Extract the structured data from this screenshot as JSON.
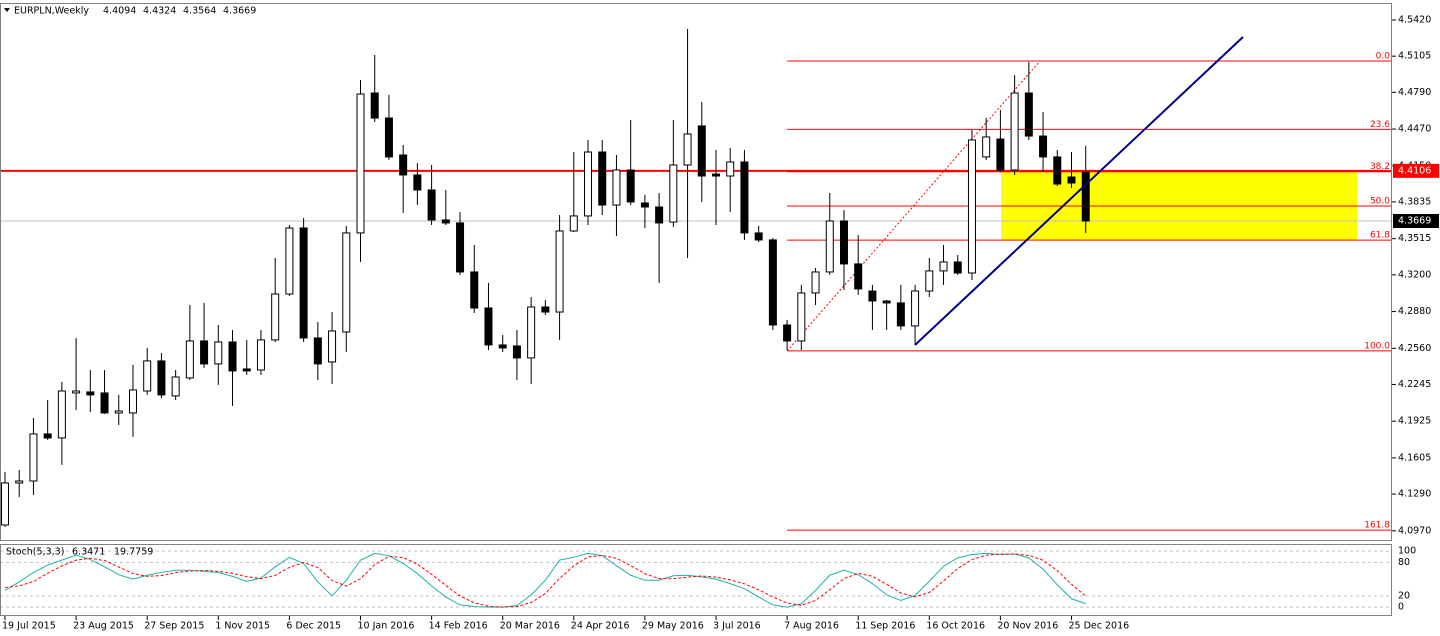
{
  "chart_data": [
    {
      "type": "candlestick",
      "title": "EURPLN,Weekly",
      "categories": [
        "19 Jul 2015",
        null,
        null,
        null,
        null,
        "23 Aug 2015",
        null,
        null,
        null,
        null,
        "27 Sep 2015",
        null,
        null,
        null,
        null,
        "1 Nov 2015",
        null,
        null,
        null,
        null,
        "6 Dec 2015",
        null,
        null,
        null,
        null,
        "10 Jan 2016",
        null,
        null,
        null,
        null,
        "14 Feb 2016",
        null,
        null,
        null,
        null,
        "20 Mar 2016",
        null,
        null,
        null,
        null,
        "24 Apr 2016",
        null,
        null,
        null,
        null,
        "29 May 2016",
        null,
        null,
        null,
        null,
        "3 Jul 2016",
        null,
        null,
        null,
        null,
        "7 Aug 2016",
        null,
        null,
        null,
        null,
        "11 Sep 2016",
        null,
        null,
        null,
        null,
        "16 Oct 2016",
        null,
        null,
        null,
        null,
        "20 Nov 2016",
        null,
        null,
        null,
        null,
        "25 Dec 2016",
        null
      ],
      "open": [
        4.1021,
        4.1387,
        4.1404,
        4.1814,
        4.1779,
        4.2171,
        4.218,
        4.2171,
        4.1997,
        4.1997,
        4.2188,
        4.245,
        4.2145,
        4.2302,
        4.2624,
        4.2424,
        4.2615,
        4.238,
        4.2371,
        4.2633,
        4.3033,
        4.3608,
        4.265,
        4.2441,
        4.2702,
        4.3565,
        4.4784,
        4.4566,
        4.4244,
        4.407,
        4.3939,
        4.3678,
        4.3652,
        4.3225,
        4.2911,
        4.2589,
        4.258,
        4.2476,
        4.292,
        4.2876,
        4.3582,
        4.3713,
        4.427,
        4.3808,
        4.4113,
        4.3826,
        4.3791,
        4.366,
        4.4157,
        4.4497,
        4.4078,
        4.4061,
        4.4183,
        4.3565,
        4.3504,
        4.2763,
        4.2624,
        4.3042,
        4.3225,
        4.3669,
        4.3295,
        4.3059,
        4.2972,
        4.2955,
        4.2755,
        4.3059,
        4.3234,
        4.3312,
        4.3216,
        4.4227,
        4.4383,
        4.4113,
        4.4784,
        4.4409,
        4.4227,
        4.4052,
        4.4094
      ],
      "high": [
        4.1483,
        4.15,
        4.1953,
        4.211,
        4.2267,
        4.265,
        4.2371,
        4.2371,
        4.2154,
        4.2415,
        4.2563,
        4.2519,
        4.2371,
        4.2937,
        4.2955,
        4.2763,
        4.272,
        4.2633,
        4.272,
        4.3347,
        4.3634,
        4.3695,
        4.2789,
        4.2876,
        4.3626,
        4.4897,
        4.5115,
        4.4767,
        4.4331,
        4.4174,
        4.4157,
        4.3939,
        4.3747,
        4.346,
        4.3129,
        4.2676,
        4.272,
        4.3007,
        4.2981,
        4.3721,
        4.427,
        4.4375,
        4.4375,
        4.4244,
        4.4549,
        4.3896,
        4.3913,
        4.4549,
        4.5341,
        4.4706,
        4.4287,
        4.4305,
        4.4287,
        4.3626,
        4.3521,
        4.2807,
        4.3112,
        4.326,
        4.3913,
        4.3765,
        4.3547,
        4.3112,
        4.2981,
        4.3112,
        4.3112,
        4.3347,
        4.346,
        4.3373,
        4.4462,
        4.4566,
        4.4636,
        4.4941,
        4.5054,
        4.4618,
        4.4287,
        4.427,
        4.4324
      ],
      "low": [
        4.1004,
        4.1265,
        4.1283,
        4.1762,
        4.1544,
        4.2023,
        4.2005,
        4.1988,
        4.1892,
        4.1788,
        4.2154,
        4.2127,
        4.211,
        4.2284,
        4.2389,
        4.2241,
        4.2058,
        4.2328,
        4.2328,
        4.2615,
        4.3016,
        4.2615,
        4.2284,
        4.2249,
        4.2528,
        4.3312,
        4.4531,
        4.42,
        4.3739,
        4.3808,
        4.3634,
        4.3634,
        4.3199,
        4.2868,
        4.2545,
        4.2528,
        4.2284,
        4.2249,
        4.285,
        4.2633,
        4.3573,
        4.3634,
        4.3721,
        4.3538,
        4.3808,
        4.3608,
        4.3129,
        4.3617,
        4.3347,
        4.3835,
        4.3634,
        4.3747,
        4.3504,
        4.3486,
        4.272,
        4.2545,
        4.2545,
        4.2937,
        4.3199,
        4.3068,
        4.3025,
        4.272,
        4.272,
        4.272,
        4.2589,
        4.3007,
        4.3112,
        4.3199,
        4.3155,
        4.42,
        4.4096,
        4.407,
        4.4375,
        4.4096,
        4.3974,
        4.3957,
        4.3564
      ],
      "close": [
        4.1387,
        4.1404,
        4.1814,
        4.1779,
        4.2188,
        4.2188,
        4.2154,
        4.1997,
        4.2014,
        4.2197,
        4.245,
        4.2154,
        4.231,
        4.2624,
        4.2424,
        4.2615,
        4.2363,
        4.2363,
        4.2633,
        4.3033,
        4.3608,
        4.265,
        4.2424,
        4.2711,
        4.3565,
        4.4775,
        4.4566,
        4.4227,
        4.407,
        4.3939,
        4.3678,
        4.3652,
        4.3225,
        4.2911,
        4.2589,
        4.2563,
        4.2476,
        4.292,
        4.2876,
        4.3582,
        4.3713,
        4.427,
        4.3808,
        4.4113,
        4.3835,
        4.3791,
        4.3652,
        4.4157,
        4.4427,
        4.4061,
        4.4061,
        4.4183,
        4.3565,
        4.3504,
        4.2763,
        4.2624,
        4.3042,
        4.3225,
        4.3669,
        4.3295,
        4.3077,
        4.2972,
        4.2955,
        4.2755,
        4.3059,
        4.3234,
        4.3312,
        4.3216,
        4.4375,
        4.4401,
        4.4113,
        4.4784,
        4.4409,
        4.4227,
        4.3991,
        4.4,
        4.3669
      ],
      "ylim": [
        4.089,
        4.5568
      ],
      "yticks": [
        {
          "value": 4.542,
          "label": "4.5420"
        },
        4.5105,
        {
          "value": 4.479,
          "label": "4.4790"
        },
        {
          "value": 4.447,
          "label": "4.4470"
        },
        {
          "value": 4.415,
          "label": "4.4150"
        },
        4.3835,
        4.3515,
        {
          "value": 4.32,
          "label": "4.3200"
        },
        {
          "value": 4.288,
          "label": "4.2880"
        },
        {
          "value": 4.256,
          "label": "4.2560"
        },
        4.2245,
        4.1925,
        4.1605,
        {
          "value": 4.129,
          "label": "4.1290"
        },
        {
          "value": 4.097,
          "label": "4.0970"
        }
      ],
      "hline": {
        "value": 4.4106,
        "color": "#ff0000"
      },
      "zone": {
        "top": 4.4106,
        "bottom": 4.3502,
        "color": "#ffff00"
      },
      "trendline": {
        "values": [
          4.2589,
          4.5272
        ],
        "color": "#00008b"
      },
      "fibo": {
        "color": "#ff0000",
        "levels": [
          {
            "label": "0.0",
            "value": 4.5063
          },
          {
            "label": "23.6",
            "value": 4.4467
          },
          {
            "label": "38.2",
            "value": 4.4098
          },
          {
            "label": "50.0",
            "value": 4.38
          },
          {
            "label": "61.8",
            "value": 4.3502
          },
          {
            "label": "100.0",
            "value": 4.2537
          },
          {
            "label": "161.8",
            "value": 4.0976
          }
        ]
      }
    },
    {
      "type": "line",
      "title": "Stoch(5,3,3)",
      "series": [
        {
          "color": "#20b2aa",
          "dash": false,
          "values": [
            30,
            45,
            62,
            75,
            84,
            93,
            85,
            72,
            58,
            50,
            57,
            62,
            66,
            66,
            64,
            62,
            55,
            46,
            52,
            72,
            89,
            78,
            45,
            20,
            48,
            84,
            96,
            92,
            78,
            60,
            38,
            18,
            4,
            1,
            0,
            0,
            3,
            22,
            48,
            84,
            89,
            96,
            92,
            74,
            57,
            48,
            48,
            56,
            57,
            54,
            50,
            42,
            33,
            18,
            4,
            0,
            6,
            30,
            57,
            66,
            58,
            42,
            22,
            12,
            21,
            46,
            73,
            88,
            94,
            96,
            94,
            95,
            88,
            68,
            40,
            15,
            6.3471
          ]
        },
        {
          "color": "#ff0000",
          "dash": true,
          "values": [
            35,
            38,
            45.7,
            60.7,
            73.7,
            84,
            87.3,
            83.3,
            71.7,
            60,
            55,
            56.3,
            61.7,
            64.7,
            65.3,
            64,
            60.3,
            54.3,
            51,
            56.7,
            71,
            79.7,
            70.7,
            47.7,
            37.7,
            50.7,
            76,
            90.7,
            88.7,
            76.7,
            58.7,
            38.7,
            20,
            7.7,
            1.7,
            0.3,
            1,
            8.3,
            24.3,
            51.3,
            73.7,
            89.7,
            92.3,
            87.3,
            74.3,
            59.7,
            51,
            50.7,
            53.7,
            55.7,
            53.7,
            48.7,
            41.7,
            31,
            18.3,
            7.3,
            3.3,
            12,
            31,
            51,
            60.3,
            55.3,
            40.7,
            25.3,
            18.3,
            26.3,
            46.7,
            69,
            85,
            92.7,
            94.7,
            95,
            92.3,
            83.7,
            65.3,
            41,
            19.7759
          ]
        }
      ],
      "ylim": [
        -14,
        111
      ],
      "yticks": [
        0,
        20,
        80,
        100
      ]
    }
  ]
}
